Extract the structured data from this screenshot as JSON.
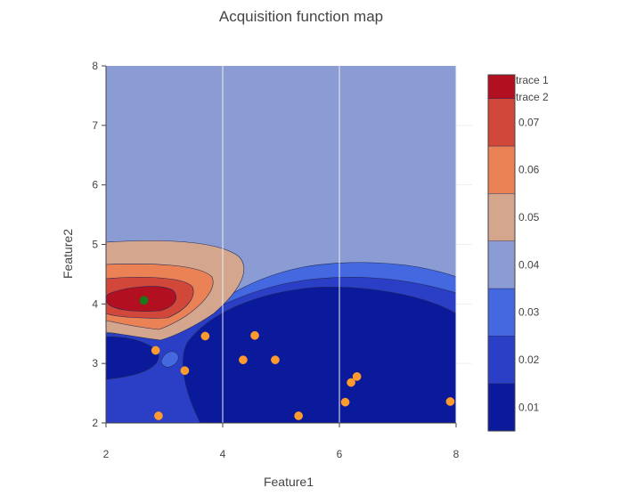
{
  "chart_data": {
    "type": "contour",
    "title": "Acquisition function map",
    "xlabel": "Feature1",
    "ylabel": "Feature2",
    "xlim": [
      2,
      8
    ],
    "ylim": [
      2,
      8
    ],
    "x_ticks": [
      "2",
      "4",
      "6",
      "8"
    ],
    "y_ticks": [
      "2",
      "3",
      "4",
      "5",
      "6",
      "7",
      "8"
    ],
    "colorbar": {
      "ticks": [
        "0.01",
        "0.02",
        "0.03",
        "0.04",
        "0.05",
        "0.06",
        "0.07"
      ],
      "levels": [
        {
          "range": [
            0.005,
            0.015
          ],
          "color": "#0a1a9a"
        },
        {
          "range": [
            0.015,
            0.025
          ],
          "color": "#2a3ec6"
        },
        {
          "range": [
            0.025,
            0.035
          ],
          "color": "#4368e0"
        },
        {
          "range": [
            0.035,
            0.045
          ],
          "color": "#8a9cd3"
        },
        {
          "range": [
            0.045,
            0.055
          ],
          "color": "#d4a68d"
        },
        {
          "range": [
            0.055,
            0.065
          ],
          "color": "#eb8255"
        },
        {
          "range": [
            0.065,
            0.075
          ],
          "color": "#d1473a"
        },
        {
          "range": [
            0.075,
            0.08
          ],
          "color": "#b20f20"
        }
      ]
    },
    "series": [
      {
        "name": "trace 1",
        "type": "scatter",
        "color": "#ff9a2e",
        "x": [
          2.85,
          2.9,
          3.35,
          3.7,
          4.35,
          4.55,
          4.9,
          5.3,
          6.1,
          6.2,
          6.3,
          7.9
        ],
        "y": [
          3.22,
          2.12,
          2.88,
          3.46,
          3.06,
          3.47,
          3.06,
          2.12,
          2.35,
          2.68,
          2.78,
          2.36
        ]
      },
      {
        "name": "trace 2",
        "type": "scatter",
        "color": "#1a7a1a",
        "x": [
          2.65
        ],
        "y": [
          4.06
        ]
      }
    ],
    "legend": "top-right"
  }
}
